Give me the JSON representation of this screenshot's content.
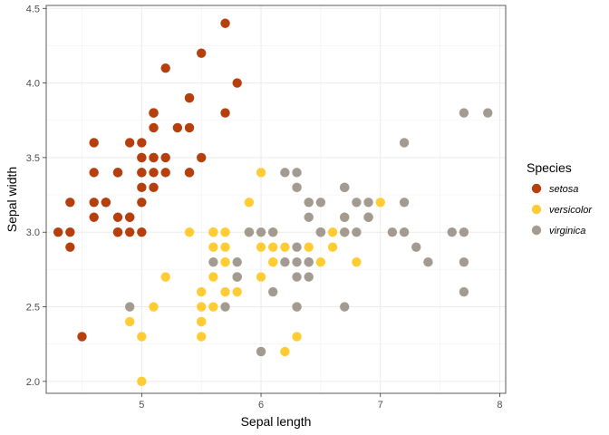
{
  "chart_data": {
    "type": "scatter",
    "xlabel": "Sepal length",
    "ylabel": "Sepal width",
    "xlim": [
      4.2,
      8.05
    ],
    "ylim": [
      1.92,
      4.52
    ],
    "x_ticks": [
      5,
      6,
      7,
      8
    ],
    "y_ticks": [
      2.0,
      2.5,
      3.0,
      3.5,
      4.0,
      4.5
    ],
    "x_tick_labels": [
      "5",
      "6",
      "7",
      "8"
    ],
    "y_tick_labels": [
      "2.0",
      "2.5",
      "3.0",
      "3.5",
      "4.0",
      "4.5"
    ],
    "grid": true,
    "legend": {
      "title": "Species",
      "position": "right"
    },
    "series": [
      {
        "name": "setosa",
        "color": "#B5400E",
        "points": [
          [
            5.1,
            3.5
          ],
          [
            4.9,
            3.0
          ],
          [
            4.7,
            3.2
          ],
          [
            4.6,
            3.1
          ],
          [
            5.0,
            3.6
          ],
          [
            5.4,
            3.9
          ],
          [
            4.6,
            3.4
          ],
          [
            5.0,
            3.4
          ],
          [
            4.4,
            2.9
          ],
          [
            4.9,
            3.1
          ],
          [
            5.4,
            3.7
          ],
          [
            4.8,
            3.4
          ],
          [
            4.8,
            3.0
          ],
          [
            4.3,
            3.0
          ],
          [
            5.8,
            4.0
          ],
          [
            5.7,
            4.4
          ],
          [
            5.4,
            3.9
          ],
          [
            5.1,
            3.5
          ],
          [
            5.7,
            3.8
          ],
          [
            5.1,
            3.8
          ],
          [
            5.4,
            3.4
          ],
          [
            5.1,
            3.7
          ],
          [
            4.6,
            3.6
          ],
          [
            5.1,
            3.3
          ],
          [
            4.8,
            3.4
          ],
          [
            5.0,
            3.0
          ],
          [
            5.0,
            3.4
          ],
          [
            5.2,
            3.5
          ],
          [
            5.2,
            3.4
          ],
          [
            4.7,
            3.2
          ],
          [
            4.8,
            3.1
          ],
          [
            5.4,
            3.4
          ],
          [
            5.2,
            4.1
          ],
          [
            5.5,
            4.2
          ],
          [
            4.9,
            3.1
          ],
          [
            5.0,
            3.2
          ],
          [
            5.5,
            3.5
          ],
          [
            4.9,
            3.6
          ],
          [
            4.4,
            3.0
          ],
          [
            5.1,
            3.4
          ],
          [
            5.0,
            3.5
          ],
          [
            4.5,
            2.3
          ],
          [
            4.4,
            3.2
          ],
          [
            5.0,
            3.5
          ],
          [
            5.1,
            3.8
          ],
          [
            4.8,
            3.0
          ],
          [
            5.1,
            3.8
          ],
          [
            4.6,
            3.2
          ],
          [
            5.3,
            3.7
          ],
          [
            5.0,
            3.3
          ]
        ]
      },
      {
        "name": "versicolor",
        "color": "#FFCC33",
        "points": [
          [
            7.0,
            3.2
          ],
          [
            6.4,
            3.2
          ],
          [
            6.9,
            3.1
          ],
          [
            5.5,
            2.3
          ],
          [
            6.5,
            2.8
          ],
          [
            5.7,
            2.8
          ],
          [
            6.3,
            3.3
          ],
          [
            4.9,
            2.4
          ],
          [
            6.6,
            2.9
          ],
          [
            5.2,
            2.7
          ],
          [
            5.0,
            2.0
          ],
          [
            5.9,
            3.0
          ],
          [
            6.0,
            2.2
          ],
          [
            6.1,
            2.9
          ],
          [
            5.6,
            2.9
          ],
          [
            6.7,
            3.1
          ],
          [
            5.6,
            3.0
          ],
          [
            5.8,
            2.7
          ],
          [
            6.2,
            2.2
          ],
          [
            5.6,
            2.5
          ],
          [
            5.9,
            3.2
          ],
          [
            6.1,
            2.8
          ],
          [
            6.3,
            2.5
          ],
          [
            6.1,
            2.8
          ],
          [
            6.4,
            2.9
          ],
          [
            6.6,
            3.0
          ],
          [
            6.8,
            2.8
          ],
          [
            6.7,
            3.0
          ],
          [
            6.0,
            2.9
          ],
          [
            5.7,
            2.6
          ],
          [
            5.5,
            2.4
          ],
          [
            5.5,
            2.4
          ],
          [
            5.8,
            2.7
          ],
          [
            6.0,
            2.7
          ],
          [
            5.4,
            3.0
          ],
          [
            6.0,
            3.4
          ],
          [
            6.7,
            3.1
          ],
          [
            6.3,
            2.3
          ],
          [
            5.6,
            3.0
          ],
          [
            5.5,
            2.5
          ],
          [
            5.5,
            2.6
          ],
          [
            6.1,
            3.0
          ],
          [
            5.8,
            2.6
          ],
          [
            5.0,
            2.3
          ],
          [
            5.6,
            2.7
          ],
          [
            5.7,
            3.0
          ],
          [
            5.7,
            2.9
          ],
          [
            6.2,
            2.9
          ],
          [
            5.1,
            2.5
          ],
          [
            5.7,
            2.8
          ]
        ]
      },
      {
        "name": "virginica",
        "color": "#A39B91",
        "points": [
          [
            6.3,
            3.3
          ],
          [
            5.8,
            2.7
          ],
          [
            7.1,
            3.0
          ],
          [
            6.3,
            2.9
          ],
          [
            6.5,
            3.0
          ],
          [
            7.6,
            3.0
          ],
          [
            4.9,
            2.5
          ],
          [
            7.3,
            2.9
          ],
          [
            6.7,
            2.5
          ],
          [
            7.2,
            3.6
          ],
          [
            6.5,
            3.2
          ],
          [
            6.4,
            2.7
          ],
          [
            6.8,
            3.0
          ],
          [
            5.7,
            2.5
          ],
          [
            5.8,
            2.8
          ],
          [
            6.4,
            3.2
          ],
          [
            6.5,
            3.0
          ],
          [
            7.7,
            3.8
          ],
          [
            7.7,
            2.6
          ],
          [
            6.0,
            2.2
          ],
          [
            6.9,
            3.2
          ],
          [
            5.6,
            2.8
          ],
          [
            7.7,
            2.8
          ],
          [
            6.3,
            2.7
          ],
          [
            6.7,
            3.3
          ],
          [
            7.2,
            3.2
          ],
          [
            6.2,
            2.8
          ],
          [
            6.1,
            3.0
          ],
          [
            6.4,
            2.8
          ],
          [
            7.2,
            3.0
          ],
          [
            7.4,
            2.8
          ],
          [
            7.9,
            3.8
          ],
          [
            6.4,
            2.8
          ],
          [
            6.3,
            2.8
          ],
          [
            6.1,
            2.6
          ],
          [
            7.7,
            3.0
          ],
          [
            6.3,
            3.4
          ],
          [
            6.4,
            3.1
          ],
          [
            6.0,
            3.0
          ],
          [
            6.9,
            3.1
          ],
          [
            6.7,
            3.1
          ],
          [
            6.9,
            3.1
          ],
          [
            5.8,
            2.7
          ],
          [
            6.8,
            3.2
          ],
          [
            6.7,
            3.3
          ],
          [
            6.7,
            3.0
          ],
          [
            6.3,
            2.5
          ],
          [
            6.5,
            3.0
          ],
          [
            6.2,
            3.4
          ],
          [
            5.9,
            3.0
          ]
        ]
      }
    ]
  }
}
